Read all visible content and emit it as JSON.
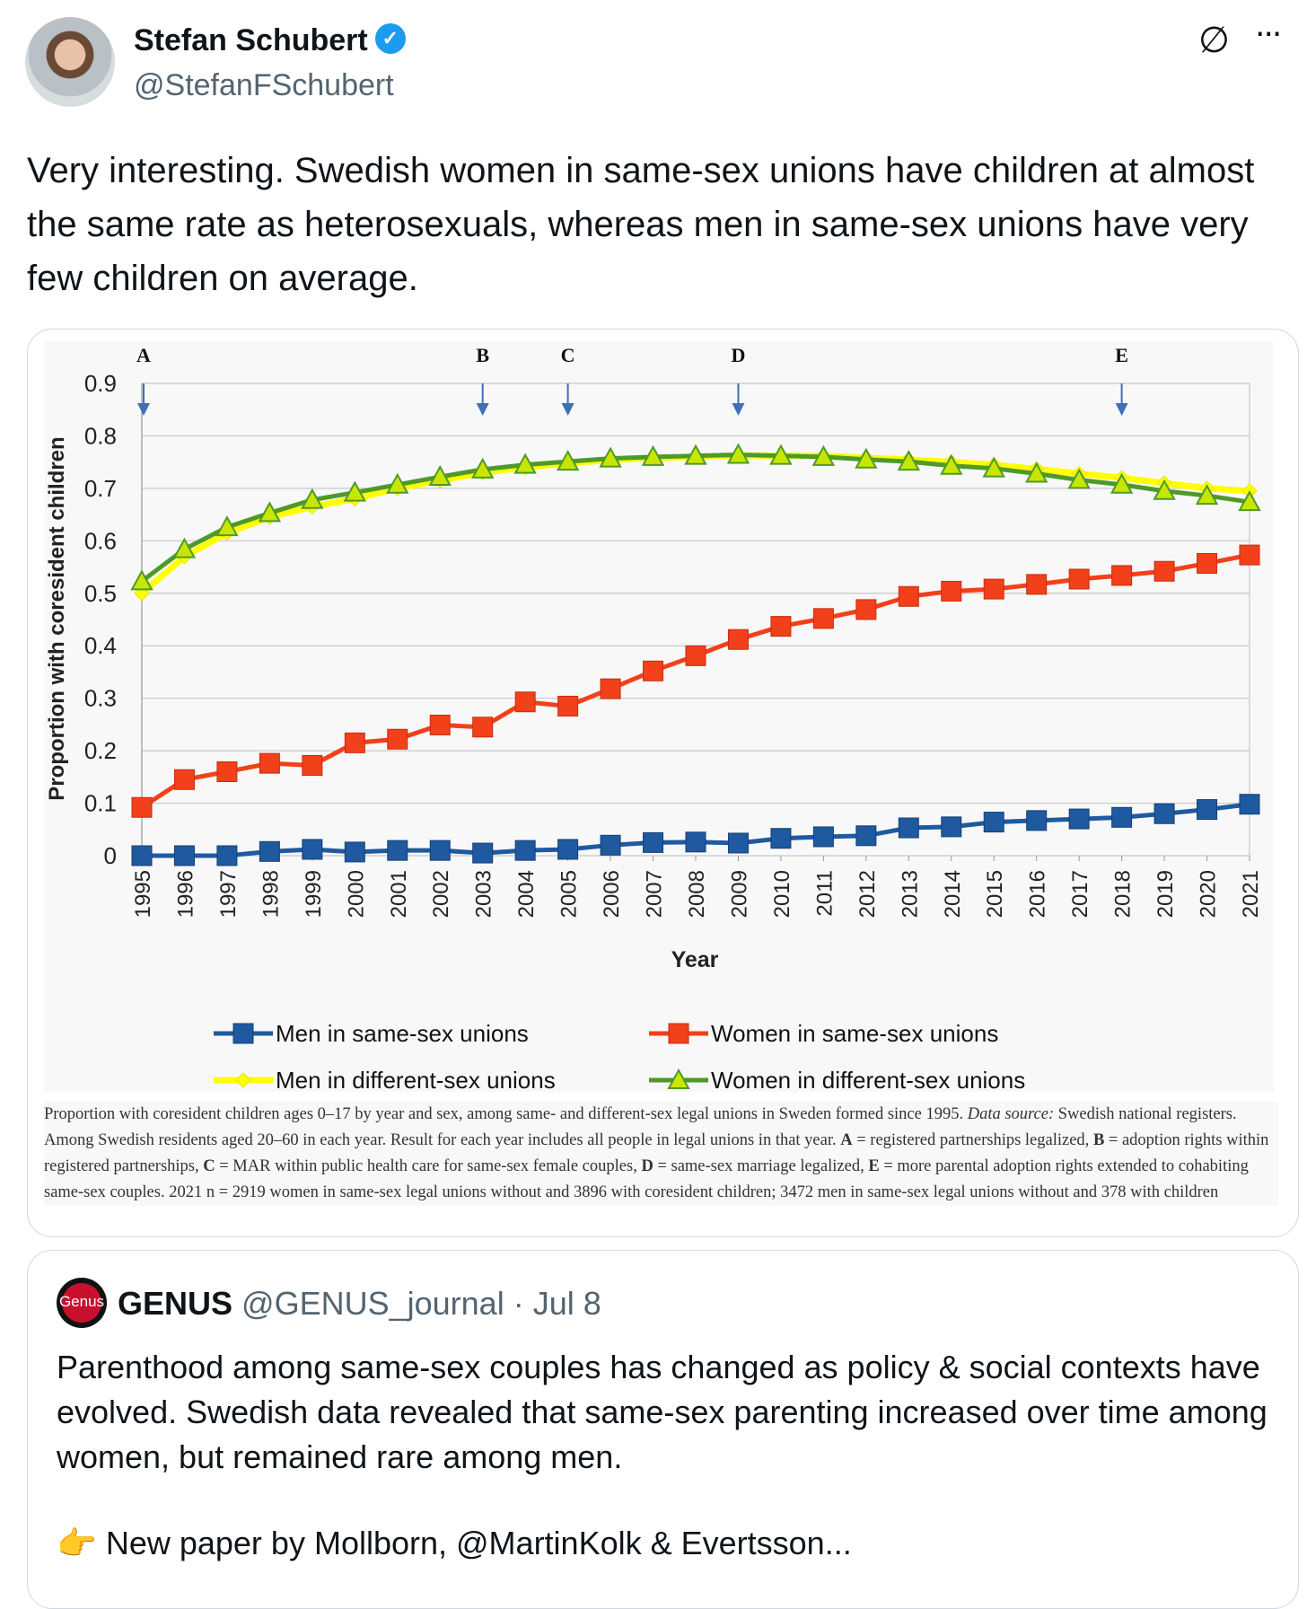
{
  "author": {
    "name": "Stefan Schubert",
    "handle": "@StefanFSchubert",
    "verified": true
  },
  "icons": {
    "grok": "slashed-circle-icon",
    "more": "more-icon",
    "more_glyph": "···"
  },
  "tweet_text": "Very interesting. Swedish women in same-sex unions have children at almost the same rate as heterosexuals, whereas men in same-sex unions have very few children on average.",
  "chart_data": {
    "type": "line",
    "title": "",
    "xlabel": "Year",
    "ylabel": "Proportion with coresident children",
    "ylim": [
      0,
      0.9
    ],
    "yticks": [
      "0",
      "0.1",
      "0.2",
      "0.3",
      "0.4",
      "0.5",
      "0.6",
      "0.7",
      "0.8",
      "0.9"
    ],
    "x": [
      "1995",
      "1996",
      "1997",
      "1998",
      "1999",
      "2000",
      "2001",
      "2002",
      "2003",
      "2004",
      "2005",
      "2006",
      "2007",
      "2008",
      "2009",
      "2010",
      "2011",
      "2012",
      "2013",
      "2014",
      "2015",
      "2016",
      "2017",
      "2018",
      "2019",
      "2020",
      "2021"
    ],
    "grid": true,
    "legend_position": "bottom",
    "annotations": [
      {
        "label": "A",
        "year": "1995"
      },
      {
        "label": "B",
        "year": "2003"
      },
      {
        "label": "C",
        "year": "2005"
      },
      {
        "label": "D",
        "year": "2009"
      },
      {
        "label": "E",
        "year": "2018"
      }
    ],
    "series": [
      {
        "name": "Men in different-sex unions",
        "color": "#ffff00",
        "edge": "#e6e600",
        "marker": "diamond",
        "values": [
          0.5,
          0.57,
          0.615,
          0.645,
          0.665,
          0.68,
          0.7,
          0.715,
          0.73,
          0.74,
          0.748,
          0.754,
          0.758,
          0.76,
          0.763,
          0.762,
          0.762,
          0.758,
          0.755,
          0.75,
          0.745,
          0.737,
          0.728,
          0.72,
          0.71,
          0.7,
          0.695
        ]
      },
      {
        "name": "Women in different-sex unions",
        "color": "#4e9a28",
        "edge": "#3a7d1c",
        "marker": "triangle",
        "fill": "#c8e600",
        "values": [
          0.523,
          0.584,
          0.626,
          0.653,
          0.678,
          0.692,
          0.707,
          0.722,
          0.736,
          0.745,
          0.751,
          0.757,
          0.76,
          0.762,
          0.764,
          0.762,
          0.76,
          0.755,
          0.751,
          0.743,
          0.738,
          0.728,
          0.716,
          0.707,
          0.695,
          0.686,
          0.674
        ]
      },
      {
        "name": "Women in same-sex unions",
        "color": "#f2401a",
        "edge": "#c42e10",
        "marker": "square",
        "values": [
          0.092,
          0.145,
          0.16,
          0.176,
          0.172,
          0.215,
          0.222,
          0.249,
          0.245,
          0.293,
          0.285,
          0.318,
          0.352,
          0.381,
          0.412,
          0.437,
          0.452,
          0.469,
          0.494,
          0.504,
          0.508,
          0.517,
          0.527,
          0.534,
          0.542,
          0.557,
          0.573
        ]
      },
      {
        "name": "Men in same-sex unions",
        "color": "#1f5aa0",
        "edge": "#163f73",
        "marker": "square",
        "values": [
          0.0,
          0.0,
          0.0,
          0.008,
          0.012,
          0.007,
          0.01,
          0.01,
          0.005,
          0.01,
          0.012,
          0.02,
          0.025,
          0.026,
          0.024,
          0.033,
          0.036,
          0.038,
          0.053,
          0.055,
          0.064,
          0.067,
          0.07,
          0.073,
          0.08,
          0.088,
          0.098
        ]
      }
    ],
    "legend_order": [
      "Men in same-sex unions",
      "Women in same-sex unions",
      "Men in different-sex unions",
      "Women in different-sex unions"
    ]
  },
  "caption": {
    "p1": "Proportion with coresident children ages 0–17 by year and sex, among same- and different-sex legal unions in Sweden formed since 1995. ",
    "source_label": "Data source:",
    "p2": " Swedish national registers. Among Swedish residents aged 20–60 in each year. Result for each year includes all people in legal unions in that year. ",
    "a": "A",
    "a_text": " = registered partnerships legalized, ",
    "b": "B",
    "b_text": " = adoption rights within registered partnerships, ",
    "c": "C",
    "c_text": " = MAR within public health care for same-sex female couples, ",
    "d": "D",
    "d_text": " = same-sex marriage legalized, ",
    "e": "E",
    "e_text": " = more parental adoption rights extended to cohabiting same-sex couples. 2021 n = 2919 women in same-sex legal unions without and 3896 with coresident children; 3472 men in same-sex legal unions without and 378 with children"
  },
  "quote": {
    "logo_text": "Genus",
    "name": "GENUS",
    "handle": "@GENUS_journal",
    "date": "· Jul 8",
    "text": "Parenthood among same-sex couples has changed as policy & social contexts have evolved. Swedish data revealed that same-sex parenting increased over time among women, but remained rare among men.",
    "more_emoji": "👉",
    "more_text": " New paper by Mollborn, @MartinKolk & Evertsson..."
  }
}
